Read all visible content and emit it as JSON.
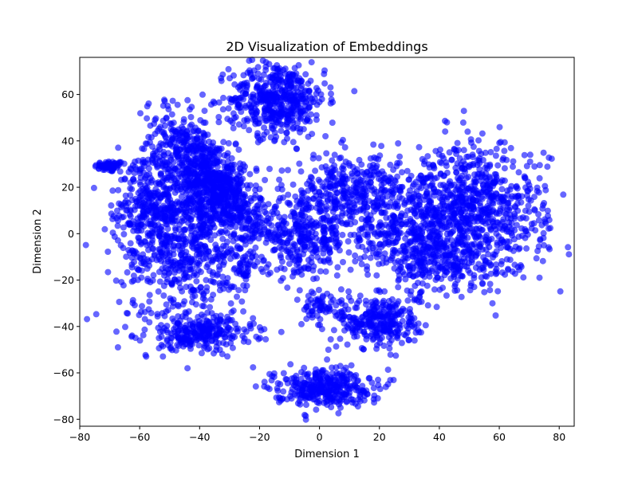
{
  "chart_data": {
    "type": "scatter",
    "title": "2D Visualization of Embeddings",
    "xlabel": "Dimension 1",
    "ylabel": "Dimension 2",
    "xlim": [
      -80,
      85
    ],
    "ylim": [
      -83,
      76
    ],
    "xticks": [
      -80,
      -60,
      -40,
      -20,
      0,
      20,
      40,
      60,
      80
    ],
    "yticks": [
      -80,
      -60,
      -40,
      -20,
      0,
      20,
      40,
      60
    ],
    "grid": false,
    "point_color": "#0000ff",
    "point_alpha": 0.6,
    "clusters": [
      {
        "center": [
          -70,
          29
        ],
        "spread": [
          2.5,
          1.2
        ],
        "count": 60
      },
      {
        "center": [
          -35,
          22
        ],
        "spread": [
          5,
          16
        ],
        "count": 800,
        "rotation": 32
      },
      {
        "center": [
          -14,
          58
        ],
        "spread": [
          8,
          8
        ],
        "count": 500
      },
      {
        "center": [
          -45,
          0
        ],
        "spread": [
          11,
          20
        ],
        "count": 900
      },
      {
        "center": [
          -56,
          15
        ],
        "spread": [
          6,
          10
        ],
        "count": 200
      },
      {
        "center": [
          -40,
          -43
        ],
        "spread": [
          9,
          3.5
        ],
        "count": 250
      },
      {
        "center": [
          -25,
          -15
        ],
        "spread": [
          1.5,
          3
        ],
        "count": 30
      },
      {
        "center": [
          -5,
          -2
        ],
        "spread": [
          7,
          8
        ],
        "count": 300
      },
      {
        "center": [
          10,
          18
        ],
        "spread": [
          9,
          8
        ],
        "count": 350
      },
      {
        "center": [
          50,
          10
        ],
        "spread": [
          13,
          14
        ],
        "count": 900
      },
      {
        "center": [
          28,
          0
        ],
        "spread": [
          9,
          9
        ],
        "count": 250
      },
      {
        "center": [
          40,
          -12
        ],
        "spread": [
          9,
          7
        ],
        "count": 200
      },
      {
        "center": [
          20,
          -38
        ],
        "spread": [
          7,
          6
        ],
        "count": 300
      },
      {
        "center": [
          0,
          -31
        ],
        "spread": [
          3,
          3
        ],
        "count": 50
      },
      {
        "center": [
          1,
          -66
        ],
        "spread": [
          8,
          4
        ],
        "count": 350
      }
    ]
  }
}
